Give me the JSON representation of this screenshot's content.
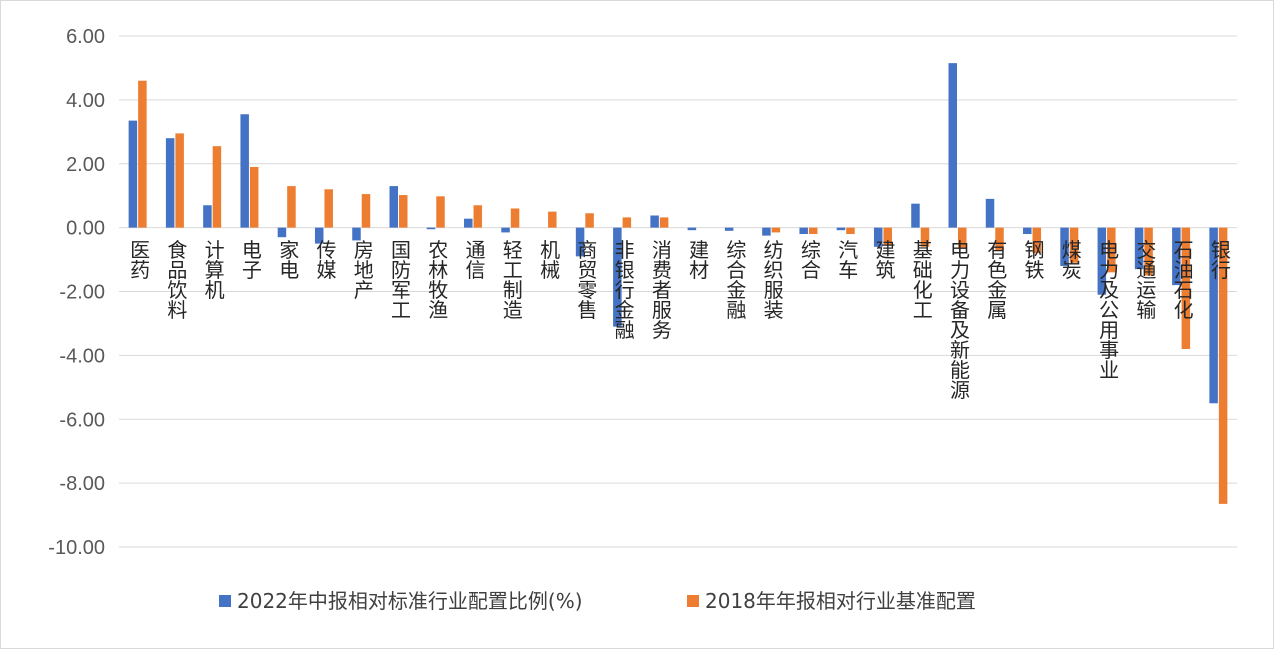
{
  "chart_data": {
    "type": "bar",
    "ylim": [
      -10,
      6
    ],
    "yticks": [
      "6.00",
      "4.00",
      "2.00",
      "0.00",
      "-2.00",
      "-4.00",
      "-6.00",
      "-8.00",
      "-10.00"
    ],
    "grid": true,
    "legend_position": "bottom",
    "categories": [
      "医药",
      "食品饮料",
      "计算机",
      "电子",
      "家电",
      "传媒",
      "房地产",
      "国防军工",
      "农林牧渔",
      "通信",
      "轻工制造",
      "机械",
      "商贸零售",
      "非银行金融",
      "消费者服务",
      "建材",
      "综合金融",
      "纺织服装",
      "综合",
      "汽车",
      "建筑",
      "基础化工",
      "电力设备及新能源",
      "有色金属",
      "钢铁",
      "煤炭",
      "电力及公用事业",
      "交通运输",
      "石油石化",
      "银行"
    ],
    "series": [
      {
        "name": "2022年中报相对标准行业配置比例(%)",
        "color": "#4472C4",
        "values": [
          3.35,
          2.8,
          0.7,
          3.55,
          -0.3,
          -0.5,
          -0.4,
          1.3,
          -0.05,
          0.28,
          -0.15,
          0.0,
          -0.9,
          -3.1,
          0.38,
          -0.08,
          -0.1,
          -0.25,
          -0.2,
          -0.08,
          -0.6,
          0.75,
          5.15,
          0.9,
          -0.2,
          -1.2,
          -2.1,
          -1.3,
          -1.8,
          -5.5
        ]
      },
      {
        "name": "2018年年报相对行业基准配置",
        "color": "#ED7D31",
        "values": [
          4.6,
          2.95,
          2.55,
          1.9,
          1.3,
          1.2,
          1.05,
          1.02,
          0.98,
          0.7,
          0.6,
          0.5,
          0.45,
          0.32,
          0.32,
          0.0,
          0.0,
          -0.15,
          -0.2,
          -0.2,
          -0.55,
          -0.6,
          -0.62,
          -0.7,
          -0.8,
          -1.1,
          -1.4,
          -1.5,
          -3.8,
          -8.65
        ]
      }
    ]
  }
}
